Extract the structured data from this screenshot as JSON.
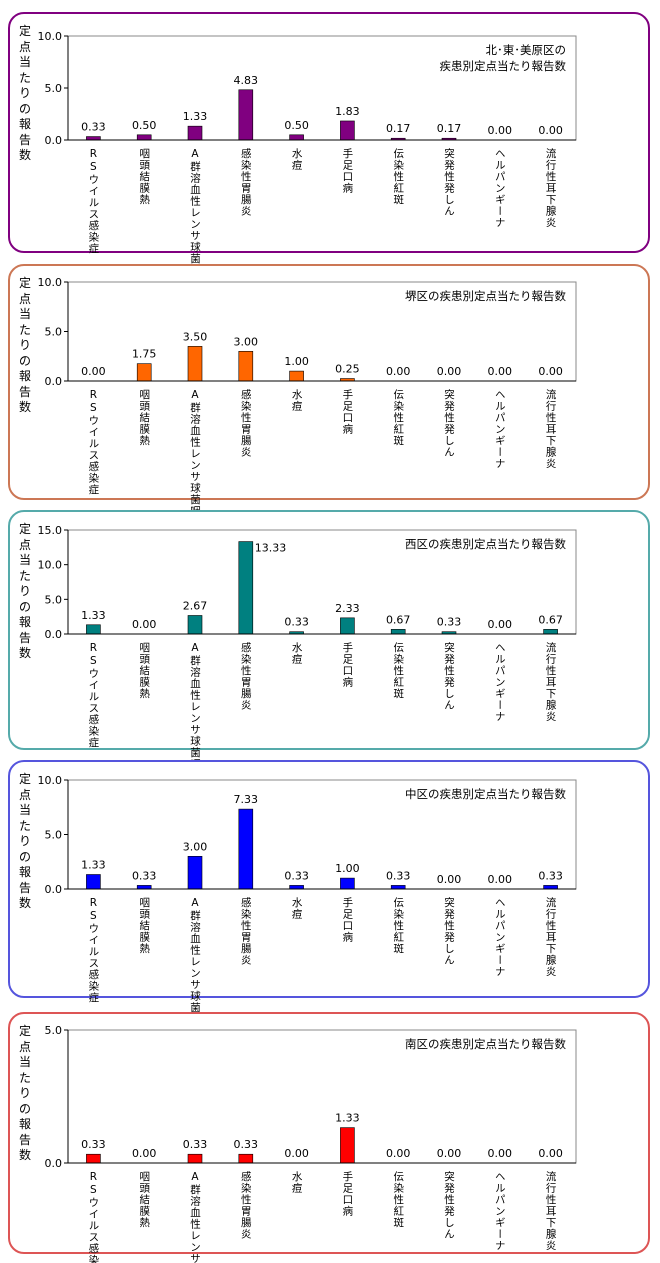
{
  "chart_data": [
    {
      "type": "bar",
      "title": "北･東･美原区の\n疾患別定点当たり報告数",
      "ylabel": "定点当たりの報告数",
      "ylim": [
        0,
        10
      ],
      "yticks": [
        "0.0",
        "5.0",
        "10.0"
      ],
      "categories": [
        "RSウイルス感染症",
        "咽頭結膜熱",
        "A群溶血性レンサ球菌咽頭炎",
        "感染性胃腸炎",
        "水痘",
        "手足口病",
        "伝染性紅斑",
        "突発性発しん",
        "ヘルパンギーナ",
        "流行性耳下腺炎"
      ],
      "values": [
        0.33,
        0.5,
        1.33,
        4.83,
        0.5,
        1.83,
        0.17,
        0.17,
        0.0,
        0.0
      ],
      "value_labels": [
        "0.33",
        "0.50",
        "1.33",
        "4.83",
        "0.50",
        "1.83",
        "0.17",
        "0.17",
        "0.00",
        "0.00"
      ],
      "bar_color": "#800080",
      "border_color": "#800080",
      "legend": "none",
      "grid": false
    },
    {
      "type": "bar",
      "title": "堺区の疾患別定点当たり報告数",
      "ylabel": "定点当たりの報告数",
      "ylim": [
        0,
        10
      ],
      "yticks": [
        "0.0",
        "5.0",
        "10.0"
      ],
      "categories": [
        "RSウイルス感染症",
        "咽頭結膜熱",
        "A群溶血性レンサ球菌咽頭炎",
        "感染性胃腸炎",
        "水痘",
        "手足口病",
        "伝染性紅斑",
        "突発性発しん",
        "ヘルパンギーナ",
        "流行性耳下腺炎"
      ],
      "values": [
        0.0,
        1.75,
        3.5,
        3.0,
        1.0,
        0.25,
        0.0,
        0.0,
        0.0,
        0.0
      ],
      "value_labels": [
        "0.00",
        "1.75",
        "3.50",
        "3.00",
        "1.00",
        "0.25",
        "0.00",
        "0.00",
        "0.00",
        "0.00"
      ],
      "bar_color": "#ff6600",
      "border_color": "#cc7755",
      "legend": "none",
      "grid": false
    },
    {
      "type": "bar",
      "title": "西区の疾患別定点当たり報告数",
      "ylabel": "定点当たりの報告数",
      "ylim": [
        0,
        15
      ],
      "yticks": [
        "0.0",
        "5.0",
        "10.0",
        "15.0"
      ],
      "categories": [
        "RSウイルス感染症",
        "咽頭結膜熱",
        "A群溶血性レンサ球菌咽頭炎",
        "感染性胃腸炎",
        "水痘",
        "手足口病",
        "伝染性紅斑",
        "突発性発しん",
        "ヘルパンギーナ",
        "流行性耳下腺炎"
      ],
      "values": [
        1.33,
        0.0,
        2.67,
        13.33,
        0.33,
        2.33,
        0.67,
        0.33,
        0.0,
        0.67
      ],
      "value_labels": [
        "1.33",
        "0.00",
        "2.67",
        "13.33",
        "0.33",
        "2.33",
        "0.67",
        "0.33",
        "0.00",
        "0.67"
      ],
      "bar_color": "#008080",
      "border_color": "#55aaaa",
      "legend": "none",
      "grid": false
    },
    {
      "type": "bar",
      "title": "中区の疾患別定点当たり報告数",
      "ylabel": "定点当たりの報告数",
      "ylim": [
        0,
        10
      ],
      "yticks": [
        "0.0",
        "5.0",
        "10.0"
      ],
      "categories": [
        "RSウイルス感染症",
        "咽頭結膜熱",
        "A群溶血性レンサ球菌咽頭炎",
        "感染性胃腸炎",
        "水痘",
        "手足口病",
        "伝染性紅斑",
        "突発性発しん",
        "ヘルパンギーナ",
        "流行性耳下腺炎"
      ],
      "values": [
        1.33,
        0.33,
        3.0,
        7.33,
        0.33,
        1.0,
        0.33,
        0.0,
        0.0,
        0.33
      ],
      "value_labels": [
        "1.33",
        "0.33",
        "3.00",
        "7.33",
        "0.33",
        "1.00",
        "0.33",
        "0.00",
        "0.00",
        "0.33"
      ],
      "bar_color": "#0000ff",
      "border_color": "#5555dd",
      "legend": "none",
      "grid": false
    },
    {
      "type": "bar",
      "title": "南区の疾患別定点当たり報告数",
      "ylabel": "定点当たりの報告数",
      "ylim": [
        0,
        5
      ],
      "yticks": [
        "0.0",
        "5.0"
      ],
      "categories": [
        "RSウイルス感染症",
        "咽頭結膜熱",
        "A群溶血性レンサ球菌咽頭炎",
        "感染性胃腸炎",
        "水痘",
        "手足口病",
        "伝染性紅斑",
        "突発性発しん",
        "ヘルパンギーナ",
        "流行性耳下腺炎"
      ],
      "values": [
        0.33,
        0.0,
        0.33,
        0.33,
        0.0,
        1.33,
        0.0,
        0.0,
        0.0,
        0.0
      ],
      "value_labels": [
        "0.33",
        "0.00",
        "0.33",
        "0.33",
        "0.00",
        "1.33",
        "0.00",
        "0.00",
        "0.00",
        "0.00"
      ],
      "bar_color": "#ff0000",
      "border_color": "#dd5555",
      "legend": "none",
      "grid": false
    }
  ]
}
